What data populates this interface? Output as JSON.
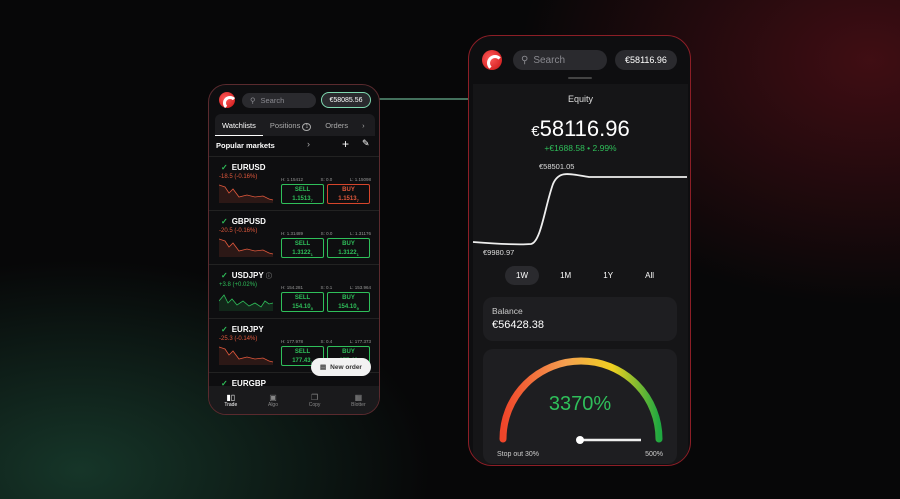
{
  "colors": {
    "accent": "#2fbf5a",
    "negative": "#e0583c",
    "frame": "#8c1e26"
  },
  "left_phone": {
    "search_placeholder": "Search",
    "icons": {
      "search": "search-icon",
      "add": "plus-icon",
      "edit": "pencil-icon"
    },
    "equity": "€58085.56",
    "tabs": [
      {
        "label": "Watchlists"
      },
      {
        "label": "Positions",
        "badge": "1"
      },
      {
        "label": "Orders"
      }
    ],
    "list_title": "Popular markets",
    "markets": [
      {
        "symbol": "EURUSD",
        "change": "-18.5 (-0.16%)",
        "trend": "down",
        "high": "H: 1.15412",
        "spread": "S: 0.0",
        "low": "L: 1.15098",
        "sell": "1.1513",
        "sell_pip": "7",
        "buy": "1.1513",
        "buy_pip": "7",
        "buy_style": "red"
      },
      {
        "symbol": "GBPUSD",
        "change": "-20.5 (-0.16%)",
        "trend": "down",
        "high": "H: 1.31489",
        "spread": "S: 0.0",
        "low": "L: 1.31176",
        "sell": "1.3122",
        "sell_pip": "1",
        "buy": "1.3122",
        "buy_pip": "1",
        "buy_style": "green"
      },
      {
        "symbol": "USDJPY",
        "change": "+3.8 (+0.02%)",
        "trend": "up",
        "high": "H: 154.281",
        "spread": "S: 0.1",
        "low": "L: 153.964",
        "sell": "154.10",
        "sell_pip": "8",
        "buy": "154.10",
        "buy_pip": "9",
        "buy_style": "green",
        "info": true
      },
      {
        "symbol": "EURJPY",
        "change": "-25.3 (-0.14%)",
        "trend": "down",
        "high": "H: 177.978",
        "spread": "S: 0.4",
        "low": "L: 177.373",
        "sell": "177.43",
        "sell_pip": "1",
        "buy": "177.43",
        "buy_pip": "",
        "buy_style": "green"
      },
      {
        "symbol": "EURGBP"
      }
    ],
    "sell_label": "SELL",
    "buy_label": "BUY",
    "new_order": "New order",
    "nav": [
      {
        "label": "Trade",
        "active": true
      },
      {
        "label": "Algo"
      },
      {
        "label": "Copy"
      },
      {
        "label": "Blotter"
      }
    ]
  },
  "right_phone": {
    "search_placeholder": "Search",
    "equity_pill": "€58116.96",
    "equity_title": "Equity",
    "equity_value": "58116.96",
    "currency": "€",
    "equity_change": "+€1688.58 • 2.99%",
    "chart_data": {
      "type": "line",
      "max_label": "€58501.05",
      "min_label": "€9980.97",
      "min": 9980.97,
      "max": 58501.05
    },
    "ranges": [
      {
        "label": "1W",
        "active": true
      },
      {
        "label": "1M"
      },
      {
        "label": "1Y"
      },
      {
        "label": "All"
      }
    ],
    "balance_label": "Balance",
    "balance_value": "€56428.38",
    "margin_level": "3370%",
    "margin_level_pct": 3370,
    "stop_out": "Stop out 30%",
    "max_label": "500%"
  }
}
